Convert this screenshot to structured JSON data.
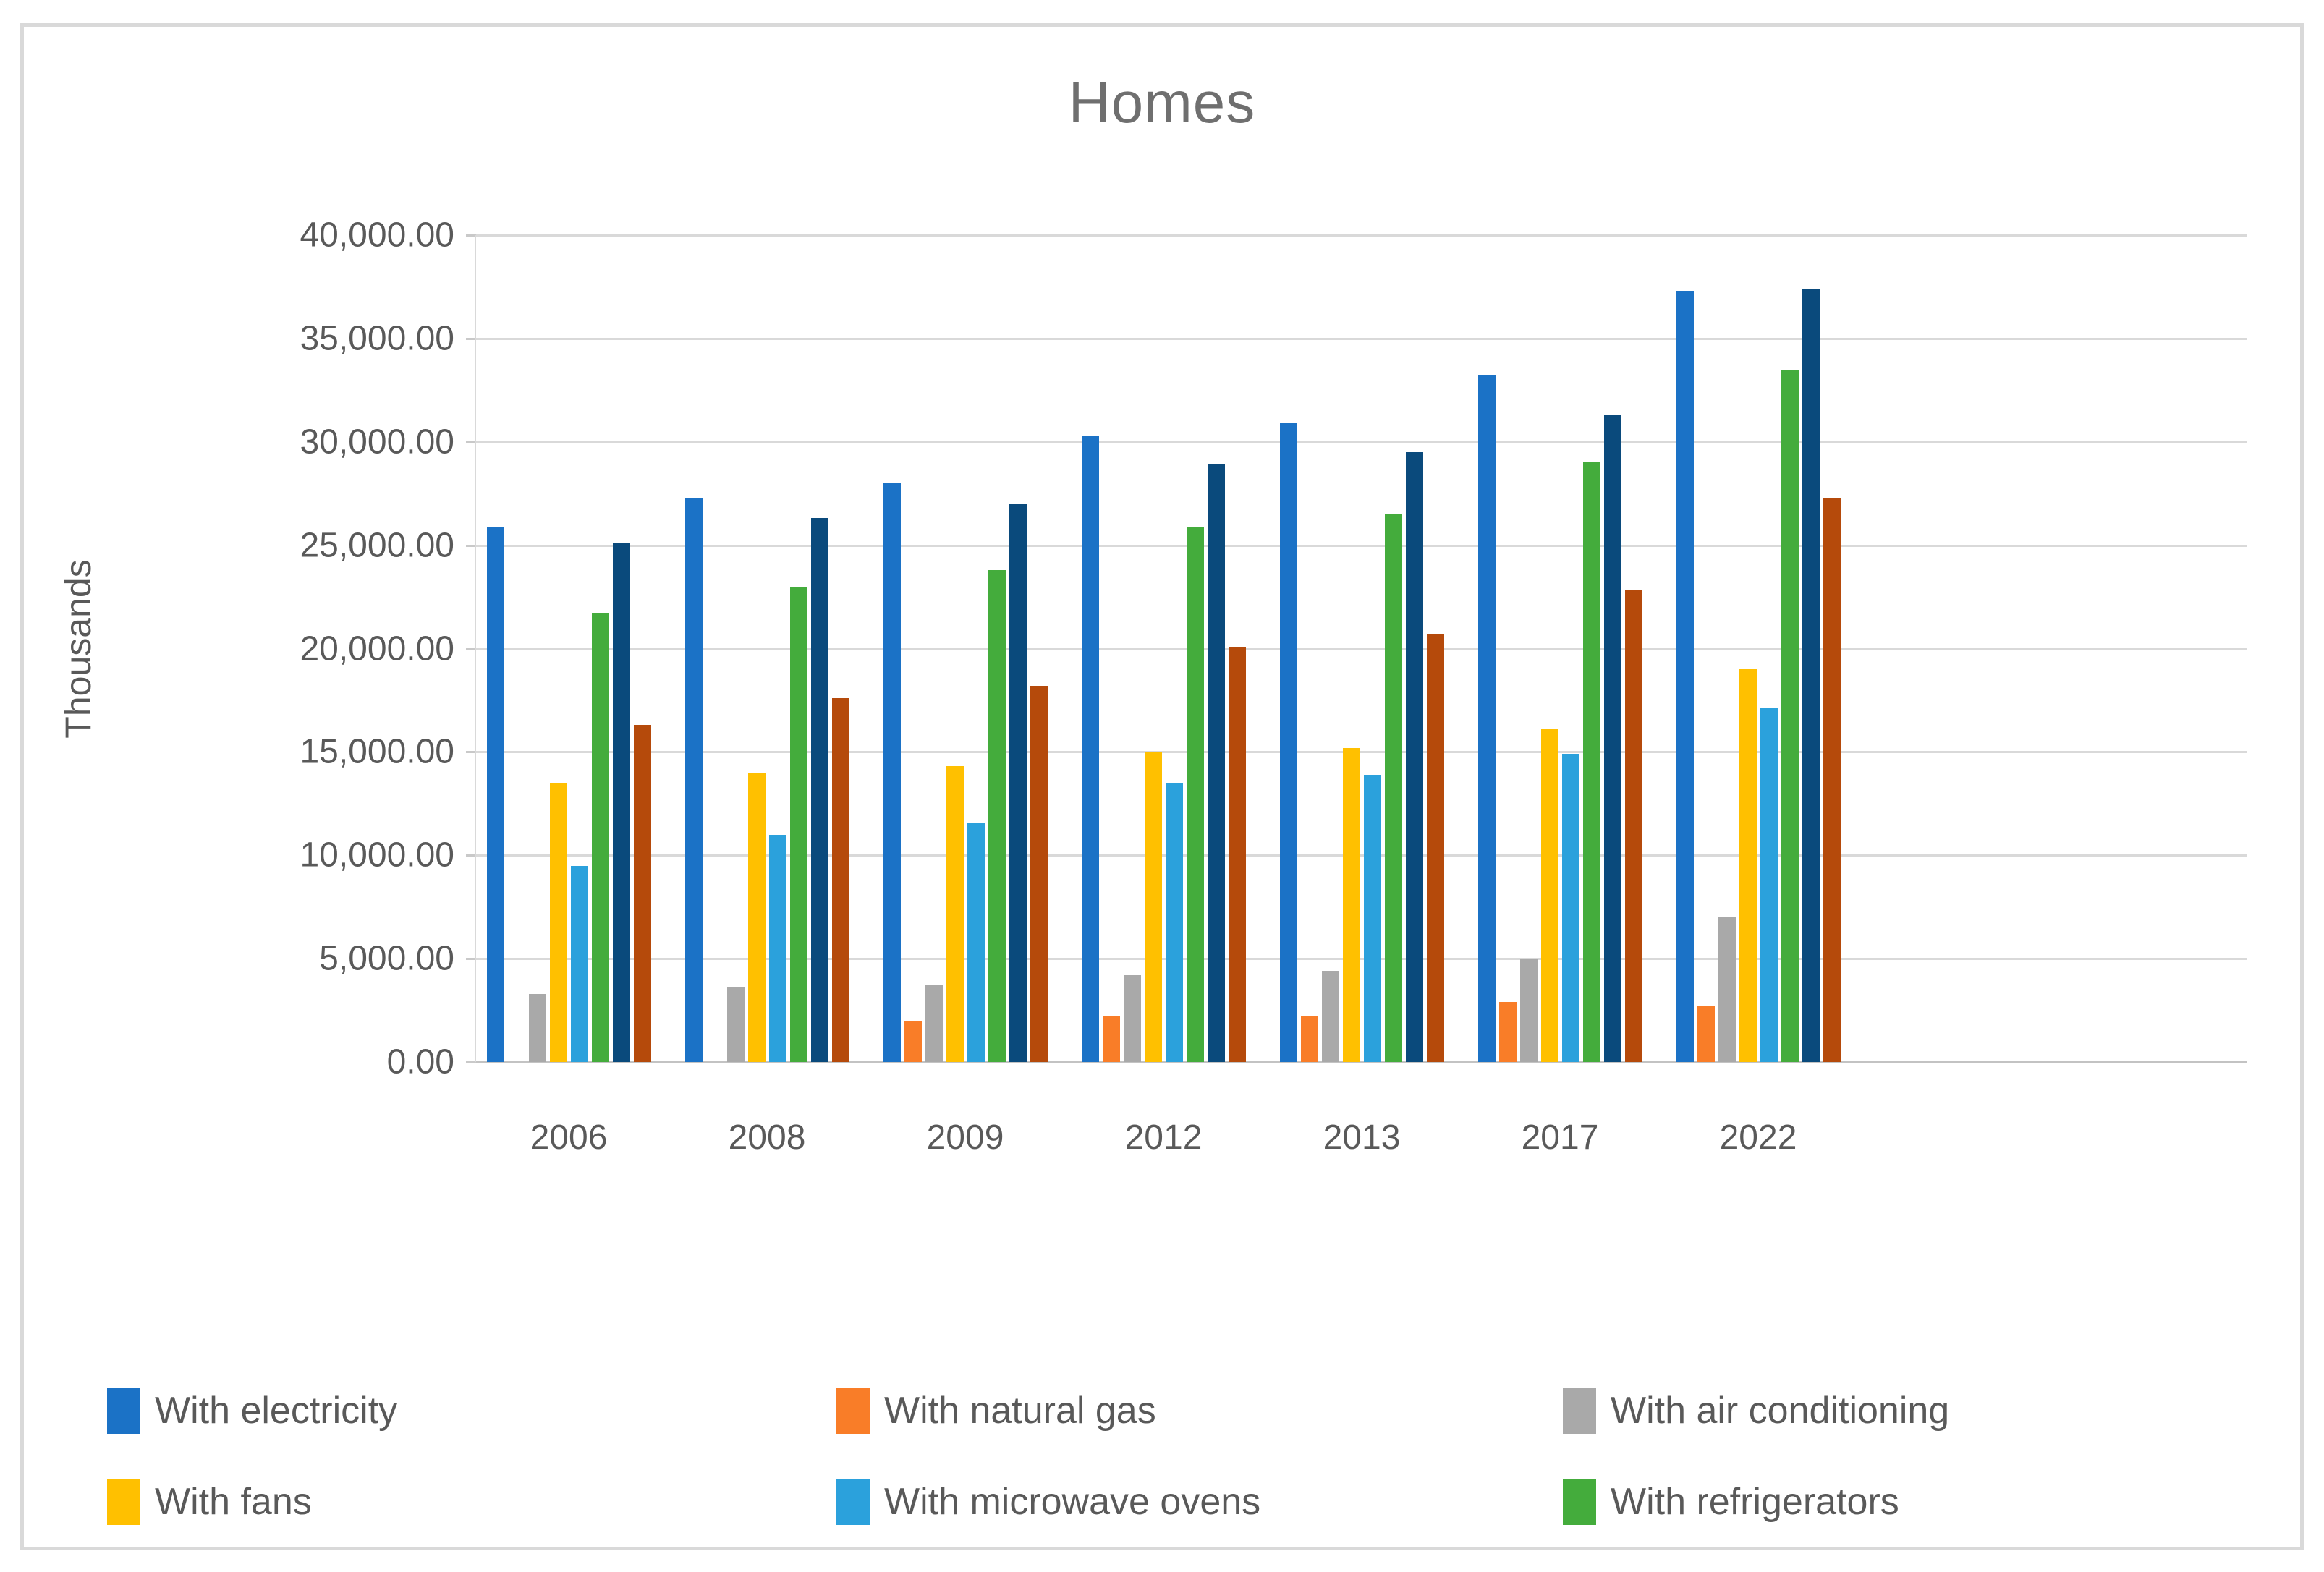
{
  "title": "Homes",
  "y_axis": {
    "title": "Thousands",
    "tick_labels": [
      "40,000.00",
      "35,000.00",
      "30,000.00",
      "25,000.00",
      "20,000.00",
      "15,000.00",
      "10,000.00",
      "5,000.00",
      "0.00"
    ],
    "min": 0,
    "max": 40000,
    "step": 5000
  },
  "x_axis": {
    "categories": [
      "2006",
      "2008",
      "2009",
      "2012",
      "2013",
      "2017",
      "2022"
    ]
  },
  "legend": [
    {
      "label": "With electricity",
      "color": "#1b72c6"
    },
    {
      "label": "With natural gas",
      "color": "#f97d28"
    },
    {
      "label": "With air conditioning",
      "color": "#a9a9a9"
    },
    {
      "label": "With fans",
      "color": "#ffc000"
    },
    {
      "label": "With microwave ovens",
      "color": "#2ba1dc"
    },
    {
      "label": "With refrigerators",
      "color": "#44ac3c"
    }
  ],
  "colors": {
    "grid": "#d9d9d9",
    "axis_text": "#595959",
    "title_text": "#6f6f6f",
    "frame_border": "#d9d9d9"
  },
  "chart_data": {
    "type": "bar",
    "title": "Homes",
    "xlabel": "",
    "ylabel": "Thousands",
    "ylim": [
      0,
      40000
    ],
    "grid": true,
    "legend_position": "bottom",
    "categories": [
      "2006",
      "2008",
      "2009",
      "2012",
      "2013",
      "2017",
      "2022"
    ],
    "series": [
      {
        "name": "With electricity",
        "color": "#1b72c6",
        "values": [
          25900,
          27300,
          28000,
          30300,
          30900,
          33200,
          37300
        ]
      },
      {
        "name": "With natural gas",
        "color": "#f97d28",
        "values": [
          0,
          0,
          2000,
          2200,
          2200,
          2900,
          2700
        ]
      },
      {
        "name": "With air conditioning",
        "color": "#a9a9a9",
        "values": [
          3300,
          3600,
          3700,
          4200,
          4400,
          5000,
          7000
        ]
      },
      {
        "name": "With fans",
        "color": "#ffc000",
        "values": [
          13500,
          14000,
          14300,
          15000,
          15200,
          16100,
          19000
        ]
      },
      {
        "name": "With microwave ovens",
        "color": "#2ba1dc",
        "values": [
          9500,
          11000,
          11600,
          13500,
          13900,
          14900,
          17100
        ]
      },
      {
        "name": "With refrigerators",
        "color": "#44ac3c",
        "values": [
          21700,
          23000,
          23800,
          25900,
          26500,
          29000,
          33500
        ]
      },
      {
        "name": "unlabeled-dark-blue",
        "color": "#0a4a7c",
        "values": [
          25100,
          26300,
          27000,
          28900,
          29500,
          31300,
          37400
        ]
      },
      {
        "name": "unlabeled-dark-red",
        "color": "#b54a0b",
        "values": [
          16300,
          17600,
          18200,
          20100,
          20700,
          22800,
          27300
        ]
      }
    ]
  }
}
